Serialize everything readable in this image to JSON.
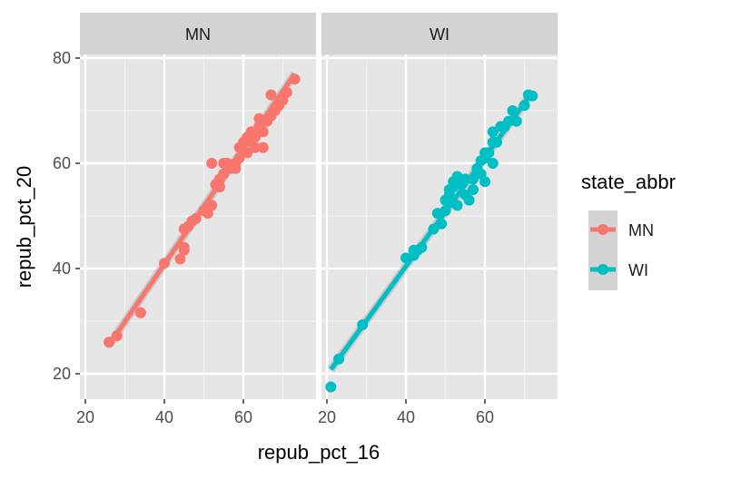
{
  "chart_data": {
    "type": "scatter",
    "xlabel": "repub_pct_16",
    "ylabel": "repub_pct_20",
    "xlim": [
      19,
      75
    ],
    "ylim": [
      15,
      82
    ],
    "xticks": [
      20,
      40,
      60
    ],
    "yticks": [
      20,
      40,
      60,
      80
    ],
    "grid": true,
    "legend_position": "right",
    "legend_title": "state_abbr",
    "facets": [
      {
        "name": "MN",
        "color": "#F8766D",
        "line": [
          [
            26,
            25.5
          ],
          [
            73,
            77
          ]
        ],
        "points": [
          [
            26,
            26
          ],
          [
            28,
            27.2
          ],
          [
            34,
            31.6
          ],
          [
            40,
            41
          ],
          [
            44,
            41.8
          ],
          [
            45,
            43.5
          ],
          [
            45,
            44
          ],
          [
            45,
            47.5
          ],
          [
            46,
            48
          ],
          [
            47,
            49
          ],
          [
            48,
            49.5
          ],
          [
            50,
            51
          ],
          [
            51,
            51.5
          ],
          [
            51,
            50.5
          ],
          [
            52,
            52
          ],
          [
            52,
            60
          ],
          [
            53,
            56
          ],
          [
            54,
            55.5
          ],
          [
            54,
            57
          ],
          [
            55,
            58
          ],
          [
            55,
            60
          ],
          [
            56,
            60
          ],
          [
            57,
            59
          ],
          [
            58,
            60
          ],
          [
            58,
            59
          ],
          [
            59,
            61
          ],
          [
            59,
            63
          ],
          [
            60,
            64
          ],
          [
            61,
            62
          ],
          [
            61,
            65
          ],
          [
            62,
            66
          ],
          [
            62,
            64
          ],
          [
            63,
            63
          ],
          [
            63,
            65
          ],
          [
            64,
            67
          ],
          [
            64,
            68.5
          ],
          [
            65,
            63
          ],
          [
            65,
            66
          ],
          [
            66,
            68
          ],
          [
            67,
            73
          ],
          [
            67,
            69
          ],
          [
            68,
            70
          ],
          [
            69,
            71
          ],
          [
            70,
            72
          ],
          [
            71,
            73.5
          ],
          [
            73,
            76
          ]
        ]
      },
      {
        "name": "WI",
        "color": "#00BFC4",
        "line": [
          [
            21,
            20.8
          ],
          [
            72,
            73.5
          ]
        ],
        "points": [
          [
            21,
            17.5
          ],
          [
            23,
            22.8
          ],
          [
            29,
            29.3
          ],
          [
            40,
            42
          ],
          [
            42,
            42.5
          ],
          [
            42,
            43.5
          ],
          [
            43,
            43.5
          ],
          [
            44,
            44
          ],
          [
            47,
            47.5
          ],
          [
            48,
            50.5
          ],
          [
            49,
            48.5
          ],
          [
            50,
            51
          ],
          [
            50,
            53
          ],
          [
            51,
            52.5
          ],
          [
            51,
            54
          ],
          [
            51,
            55
          ],
          [
            52,
            55.5
          ],
          [
            52,
            56.5
          ],
          [
            53,
            57.5
          ],
          [
            53,
            52
          ],
          [
            54,
            56
          ],
          [
            55,
            57
          ],
          [
            55,
            54
          ],
          [
            56,
            53
          ],
          [
            57,
            55
          ],
          [
            57,
            57
          ],
          [
            58,
            59
          ],
          [
            59,
            60.5
          ],
          [
            59,
            58
          ],
          [
            60,
            62
          ],
          [
            60,
            61
          ],
          [
            60,
            56.5
          ],
          [
            61,
            62
          ],
          [
            62,
            60
          ],
          [
            62,
            64
          ],
          [
            62,
            66
          ],
          [
            63,
            64
          ],
          [
            64,
            67
          ],
          [
            65,
            67
          ],
          [
            66,
            68
          ],
          [
            67,
            70
          ],
          [
            68,
            68
          ],
          [
            70,
            71
          ],
          [
            71,
            73
          ],
          [
            72,
            72.8
          ]
        ]
      }
    ]
  }
}
